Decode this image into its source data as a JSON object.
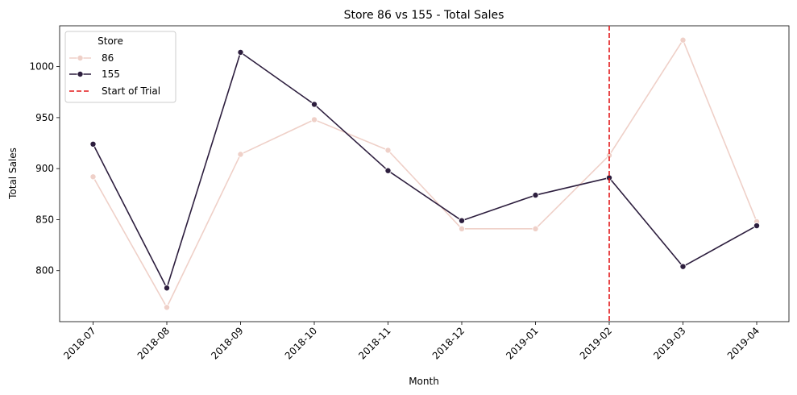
{
  "chart_data": {
    "type": "line",
    "title": "Store 86 vs 155 - Total Sales",
    "xlabel": "Month",
    "ylabel": "Total Sales",
    "categories": [
      "2018-07",
      "2018-08",
      "2018-09",
      "2018-10",
      "2018-11",
      "2018-12",
      "2019-01",
      "2019-02",
      "2019-03",
      "2019-04"
    ],
    "yticks": [
      800,
      850,
      900,
      950,
      1000
    ],
    "ylim": [
      750,
      1040
    ],
    "grid": false,
    "legend": {
      "title": "Store",
      "placement": "top-left"
    },
    "series": [
      {
        "name": "86",
        "color": "#efd0c8",
        "values": [
          892,
          764,
          914,
          948,
          918,
          841,
          841,
          913,
          1026,
          848
        ]
      },
      {
        "name": "155",
        "color": "#2d1e3e",
        "values": [
          924,
          783,
          1014,
          963,
          898,
          849,
          874,
          891,
          804,
          844
        ]
      }
    ],
    "reference_line": {
      "label": "Start of Trial",
      "x": "2019-02",
      "color": "#e31a1c",
      "style": "dashed"
    }
  }
}
